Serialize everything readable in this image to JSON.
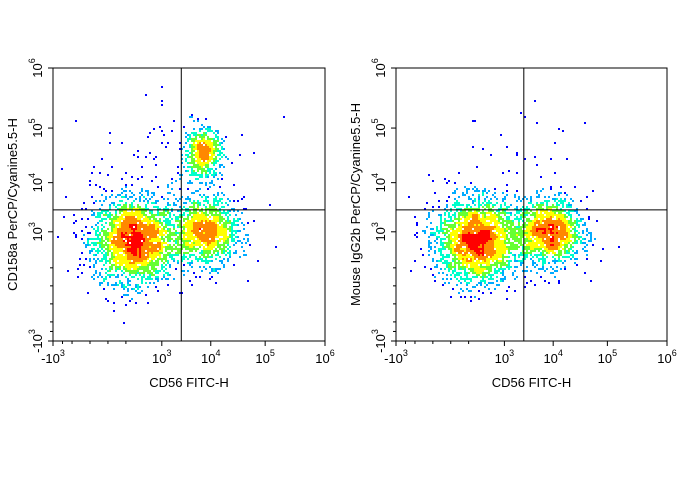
{
  "chart_data": [
    {
      "type": "scatter",
      "subtype": "flow-cytometry-density-dot-plot",
      "xlabel": "CD56 FITC-H",
      "ylabel": "CD158a PerCP/Cyanine5.5-H",
      "x_scale": "biexponential",
      "y_scale": "biexponential",
      "xlim": [
        -1000,
        1000000
      ],
      "ylim": [
        -1000,
        1000000
      ],
      "x_ticks": [
        {
          "base": "-10",
          "exp": "3",
          "value": -1000
        },
        {
          "base": "10",
          "exp": "3",
          "value": 1000
        },
        {
          "base": "10",
          "exp": "4",
          "value": 10000
        },
        {
          "base": "10",
          "exp": "5",
          "value": 100000
        },
        {
          "base": "10",
          "exp": "6",
          "value": 1000000
        }
      ],
      "y_ticks": [
        {
          "base": "-10",
          "exp": "3",
          "value": -1000
        },
        {
          "base": "10",
          "exp": "3",
          "value": 1000
        },
        {
          "base": "10",
          "exp": "4",
          "value": 10000
        },
        {
          "base": "10",
          "exp": "5",
          "value": 100000
        },
        {
          "base": "10",
          "exp": "6",
          "value": 1000000
        }
      ],
      "quadrant_gate": {
        "x": 2500,
        "y": 2800
      },
      "populations": [
        {
          "x_center": 700,
          "y_center": 900,
          "relative_density": 1.0,
          "spread": "wide"
        },
        {
          "x_center": 8000,
          "y_center": 1000,
          "relative_density": 0.5,
          "spread": "medium"
        },
        {
          "x_center": 7000,
          "y_center": 35000,
          "relative_density": 0.22,
          "spread": "small"
        },
        {
          "x_center": 1500,
          "y_center": 15000,
          "relative_density": 0.04,
          "spread": "sparse"
        }
      ],
      "grid": false,
      "legend": "none"
    },
    {
      "type": "scatter",
      "subtype": "flow-cytometry-density-dot-plot",
      "xlabel": "CD56 FITC-H",
      "ylabel": "Mouse IgG2b PerCP/Cyanine5.5-H",
      "x_scale": "biexponential",
      "y_scale": "biexponential",
      "xlim": [
        -1000,
        1000000
      ],
      "ylim": [
        -1000,
        1000000
      ],
      "x_ticks": [
        {
          "base": "-10",
          "exp": "3",
          "value": -1000
        },
        {
          "base": "10",
          "exp": "3",
          "value": 1000
        },
        {
          "base": "10",
          "exp": "4",
          "value": 10000
        },
        {
          "base": "10",
          "exp": "5",
          "value": 100000
        },
        {
          "base": "10",
          "exp": "6",
          "value": 1000000
        }
      ],
      "y_ticks": [
        {
          "base": "-10",
          "exp": "3",
          "value": -1000
        },
        {
          "base": "10",
          "exp": "3",
          "value": 1000
        },
        {
          "base": "10",
          "exp": "4",
          "value": 10000
        },
        {
          "base": "10",
          "exp": "5",
          "value": 100000
        },
        {
          "base": "10",
          "exp": "6",
          "value": 1000000
        }
      ],
      "quadrant_gate": {
        "x": 2500,
        "y": 2800
      },
      "populations": [
        {
          "x_center": 700,
          "y_center": 900,
          "relative_density": 1.0,
          "spread": "wide"
        },
        {
          "x_center": 8000,
          "y_center": 1000,
          "relative_density": 0.6,
          "spread": "medium"
        },
        {
          "x_center": 1200,
          "y_center": 20000,
          "relative_density": 0.015,
          "spread": "sparse"
        }
      ],
      "grid": false,
      "legend": "none"
    }
  ],
  "colors": {
    "density_scale": [
      "#0000ff",
      "#00aaff",
      "#00ffcc",
      "#66ff33",
      "#ffff00",
      "#ff8800",
      "#ff0000"
    ],
    "axis": "#000000"
  }
}
